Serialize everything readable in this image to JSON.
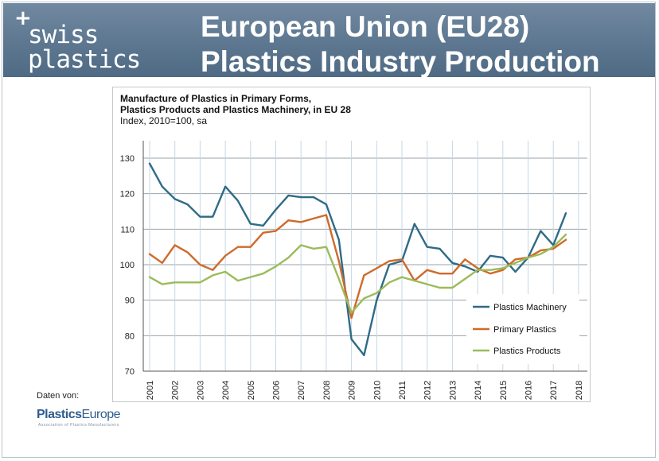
{
  "header": {
    "logo_plus": "+",
    "logo_line1": "swiss",
    "logo_line2": "plastics",
    "title_line1": "European Union (EU28)",
    "title_line2": "Plastics Industry Production"
  },
  "source": {
    "label": "Daten von:",
    "logo_part1": "Plastics",
    "logo_part2": "Europe",
    "logo_tagline": "Association of Plastics Manufacturers"
  },
  "colors": {
    "header_bg": "#5d7790",
    "machinery": "#2e6b86",
    "primary": "#cf6a2a",
    "products": "#9cbb5a"
  },
  "chart_data": {
    "type": "line",
    "title_lines": [
      "Manufacture of Plastics in Primary Forms,",
      "Plastics Products and Plastics Machinery,  in EU 28",
      "Index, 2010=100, sa"
    ],
    "xlabel": "",
    "ylabel": "",
    "ylim": [
      70,
      135
    ],
    "yticks": [
      70,
      80,
      90,
      100,
      110,
      120,
      130
    ],
    "xlim": [
      2001,
      2018
    ],
    "xticks": [
      2001,
      2002,
      2003,
      2004,
      2005,
      2006,
      2007,
      2008,
      2009,
      2010,
      2011,
      2012,
      2013,
      2014,
      2015,
      2016,
      2017,
      2018
    ],
    "grid": true,
    "legend_position": "bottom-right",
    "x": [
      2001.0,
      2001.5,
      2002.0,
      2002.5,
      2003.0,
      2003.5,
      2004.0,
      2004.5,
      2005.0,
      2005.5,
      2006.0,
      2006.5,
      2007.0,
      2007.5,
      2008.0,
      2008.5,
      2009.0,
      2009.5,
      2010.0,
      2010.5,
      2011.0,
      2011.5,
      2012.0,
      2012.5,
      2013.0,
      2013.5,
      2014.0,
      2014.5,
      2015.0,
      2015.5,
      2016.0,
      2016.5,
      2017.0,
      2017.5
    ],
    "series": [
      {
        "name": "Plastics Machinery",
        "color": "#2e6b86",
        "values": [
          128.5,
          122,
          118.5,
          117,
          113.5,
          113.5,
          122,
          118,
          111.5,
          111,
          115.5,
          119.5,
          119,
          119,
          117,
          107,
          79,
          74.5,
          90,
          100,
          101,
          111.5,
          105,
          104.5,
          100.5,
          99.5,
          98,
          102.5,
          102,
          98,
          102,
          109.5,
          105.5,
          114.5
        ]
      },
      {
        "name": "Primary Plastics",
        "color": "#cf6a2a",
        "values": [
          103,
          100.5,
          105.5,
          103.5,
          100,
          98.5,
          102.5,
          105,
          105,
          109,
          109.5,
          112.5,
          112,
          113,
          114,
          101,
          85,
          97,
          99,
          101,
          101.5,
          95.5,
          98.5,
          97.5,
          97.5,
          101.5,
          99,
          97.5,
          98.5,
          101.5,
          102,
          104,
          104.5,
          107
        ]
      },
      {
        "name": "Plastics Products",
        "color": "#9cbb5a",
        "values": [
          96.5,
          94.5,
          95,
          95,
          95,
          97,
          98,
          95.5,
          96.5,
          97.5,
          99.5,
          102,
          105.5,
          104.5,
          105,
          96,
          86.5,
          90.5,
          92,
          95,
          96.5,
          95.5,
          94.5,
          93.5,
          93.5,
          96,
          98.5,
          98.5,
          99,
          100.5,
          102,
          103,
          105,
          108.5
        ]
      }
    ]
  }
}
